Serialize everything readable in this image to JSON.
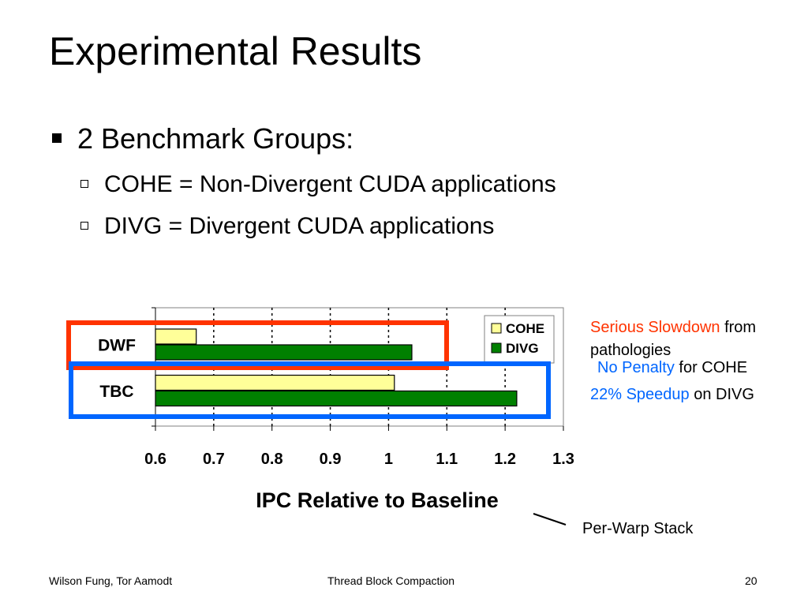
{
  "slide": {
    "title": "Experimental Results",
    "bullet": "2 Benchmark Groups:",
    "sub_bullets": [
      "COHE = Non-Divergent CUDA applications",
      "DIVG = Divergent CUDA applications"
    ]
  },
  "annotations": {
    "serious": "Serious Slowdown",
    "serious_rest": "from",
    "pathologies": "pathologies",
    "no_penalty": "No Penalty",
    "no_penalty_rest": "for COHE",
    "speedup": "22% Speedup",
    "speedup_rest": "on DIVG",
    "per_warp": "Per-Warp Stack"
  },
  "footer": {
    "authors": "Wilson Fung, Tor Aamodt",
    "topic": "Thread Block Compaction",
    "page": "20"
  },
  "colors": {
    "cohe": "#ffff99",
    "divg": "#008000",
    "red_box": "#ff3300",
    "blue_box": "#0066ff"
  },
  "chart_data": {
    "type": "bar",
    "orientation": "horizontal",
    "categories": [
      "DWF",
      "TBC"
    ],
    "series": [
      {
        "name": "COHE",
        "values": [
          0.67,
          1.01
        ]
      },
      {
        "name": "DIVG",
        "values": [
          1.04,
          1.22
        ]
      }
    ],
    "xlabel": "IPC Relative to Baseline",
    "xlim": [
      0.6,
      1.3
    ],
    "xticks": [
      "0.6",
      "0.7",
      "0.8",
      "0.9",
      "1",
      "1.1",
      "1.2",
      "1.3"
    ],
    "grid": true,
    "legend": "top-right"
  }
}
